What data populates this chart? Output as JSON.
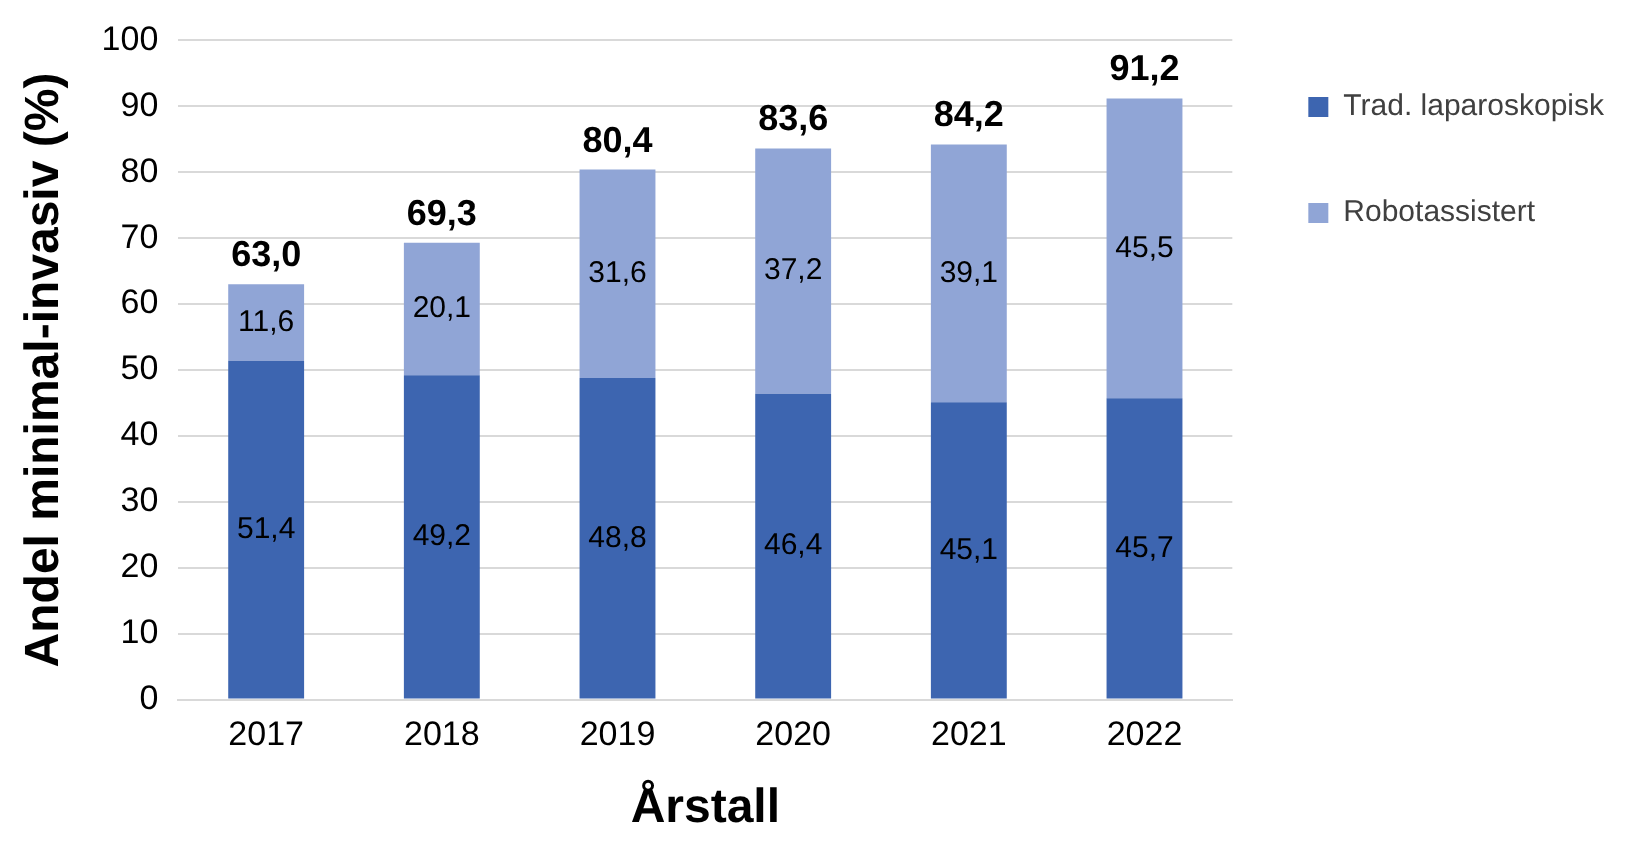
{
  "chart_data": {
    "type": "bar",
    "stacked": true,
    "xlabel": "Årstall",
    "ylabel": "Andel minimal-invasiv (%)",
    "categories": [
      "2017",
      "2018",
      "2019",
      "2020",
      "2021",
      "2022"
    ],
    "series": [
      {
        "name": "Trad. laparoskopisk",
        "color": "#3d65b0",
        "values": [
          51.4,
          49.2,
          48.8,
          46.4,
          45.1,
          45.7
        ],
        "value_labels": [
          "51,4",
          "49,2",
          "48,8",
          "46,4",
          "45,1",
          "45,7"
        ]
      },
      {
        "name": "Robotassistert",
        "color": "#90a5d6",
        "values": [
          11.6,
          20.1,
          31.6,
          37.2,
          39.1,
          45.5
        ],
        "value_labels": [
          "11,6",
          "20,1",
          "31,6",
          "37,2",
          "39,1",
          "45,5"
        ]
      }
    ],
    "totals": [
      "63,0",
      "69,3",
      "80,4",
      "83,6",
      "84,2",
      "91,2"
    ],
    "ylim": [
      0,
      100
    ],
    "yticks": [
      0,
      10,
      20,
      30,
      40,
      50,
      60,
      70,
      80,
      90,
      100
    ],
    "grid": "y",
    "legend": "top right"
  }
}
